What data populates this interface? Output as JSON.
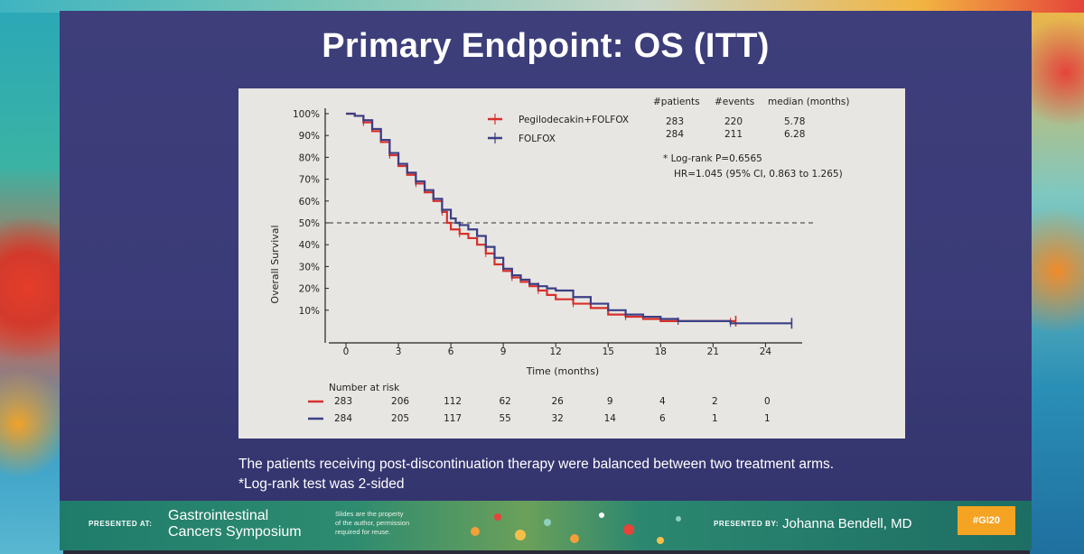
{
  "colors": {
    "pegilodecakin": "#d8312a",
    "folfox": "#3b3f86",
    "slide_bg": "#3b3c78",
    "panel_bg": "#e8e6e2"
  },
  "slide": {
    "title": "Primary Endpoint: OS (ITT)",
    "caption_1": "The patients receiving post-discontinuation therapy were balanced between two treatment arms.",
    "caption_2": "*Log-rank test was 2-sided"
  },
  "stats_table": {
    "headers": [
      "#patients",
      "#events",
      "median (months)"
    ],
    "rows": [
      [
        "283",
        "220",
        "5.78"
      ],
      [
        "284",
        "211",
        "6.28"
      ]
    ],
    "logrank": "* Log-rank P=0.6565",
    "hr": "HR=1.045 (95% CI, 0.863 to 1.265)"
  },
  "risk_table": {
    "title": "Number at risk",
    "rows": [
      {
        "arm": "Pegilodecakin+FOLFOX",
        "values": [
          "283",
          "206",
          "112",
          "62",
          "26",
          "9",
          "4",
          "2",
          "0"
        ]
      },
      {
        "arm": "FOLFOX",
        "values": [
          "284",
          "205",
          "117",
          "55",
          "32",
          "14",
          "6",
          "1",
          "1"
        ]
      }
    ]
  },
  "chart_data": {
    "type": "line",
    "title": "Primary Endpoint: OS (ITT)",
    "xlabel": "Time (months)",
    "ylabel": "Overall Survival",
    "xlim": [
      0,
      26
    ],
    "ylim": [
      0,
      100
    ],
    "x_ticks": [
      0,
      3,
      6,
      9,
      12,
      15,
      18,
      21,
      24
    ],
    "x_tick_labels": [
      "0",
      "3",
      "6",
      "9",
      "12",
      "15",
      "18",
      "21",
      "24"
    ],
    "y_ticks": [
      10,
      20,
      30,
      40,
      50,
      60,
      70,
      80,
      90,
      100
    ],
    "y_tick_labels": [
      "10%",
      "20%",
      "30%",
      "40%",
      "50%",
      "60%",
      "70%",
      "80%",
      "90%",
      "100%"
    ],
    "reference_line": {
      "y": 50,
      "style": "dashed"
    },
    "legend_position": "top-center",
    "series": [
      {
        "name": "Pegilodecakin+FOLFOX",
        "color": "#d8312a",
        "x": [
          0,
          0.5,
          1,
          1.5,
          2,
          2.5,
          3,
          3.5,
          4,
          4.5,
          5,
          5.5,
          5.78,
          6,
          6.5,
          7,
          7.5,
          8,
          8.5,
          9,
          9.5,
          10,
          10.5,
          11,
          11.5,
          12,
          13,
          14,
          15,
          16,
          17,
          18,
          19,
          20,
          21,
          22,
          22.3
        ],
        "y": [
          100,
          99,
          96,
          92,
          87,
          81,
          76,
          72,
          68,
          64,
          60,
          55,
          50,
          47,
          45,
          43,
          40,
          36,
          31,
          28,
          25,
          23,
          21,
          19,
          17,
          15,
          13,
          11,
          8,
          7,
          6,
          5,
          5,
          5,
          5,
          5,
          5
        ]
      },
      {
        "name": "FOLFOX",
        "color": "#3b3f86",
        "x": [
          0,
          0.5,
          1,
          1.5,
          2,
          2.5,
          3,
          3.5,
          4,
          4.5,
          5,
          5.5,
          6,
          6.28,
          6.5,
          7,
          7.5,
          8,
          8.5,
          9,
          9.5,
          10,
          10.5,
          11,
          11.5,
          12,
          13,
          14,
          15,
          16,
          17,
          18,
          19,
          20,
          21,
          22,
          23,
          24,
          25.5
        ],
        "y": [
          100,
          99,
          97,
          93,
          88,
          82,
          77,
          73,
          69,
          65,
          61,
          56,
          52,
          50,
          49,
          47,
          44,
          39,
          34,
          29,
          26,
          24,
          22,
          21,
          20,
          19,
          16,
          13,
          10,
          8,
          7,
          6,
          5,
          5,
          5,
          4,
          4,
          4,
          4
        ]
      }
    ]
  },
  "footer": {
    "presented_at": "PRESENTED AT:",
    "symposium_line1": "Gastrointestinal",
    "symposium_line2": "Cancers Symposium",
    "note_line1": "Slides are the property",
    "note_line2": "of the author, permission",
    "note_line3": "required for reuse.",
    "presented_by": "PRESENTED BY:",
    "presenter": "Johanna Bendell, MD",
    "hashtag": "#GI20"
  }
}
